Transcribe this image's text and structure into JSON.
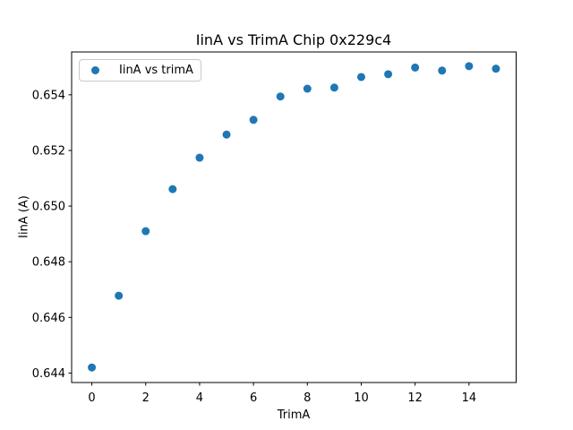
{
  "figure": {
    "background": "#ffffff",
    "text_color": "#000000",
    "spine_color": "#000000"
  },
  "chart_data": {
    "type": "scatter",
    "title": "IinA vs TrimA Chip 0x229c4",
    "xlabel": "TrimA",
    "ylabel": "IinA (A)",
    "legend": {
      "label": "IinA vs trimA",
      "position": "upper left"
    },
    "marker_color": "#1f77b4",
    "grid": false,
    "x": [
      0,
      1,
      2,
      3,
      4,
      5,
      6,
      7,
      8,
      9,
      10,
      11,
      12,
      13,
      14,
      15
    ],
    "y": [
      0.6442,
      0.64678,
      0.6491,
      0.65061,
      0.65174,
      0.65257,
      0.6531,
      0.65394,
      0.65422,
      0.65426,
      0.65464,
      0.65474,
      0.65498,
      0.65487,
      0.65503,
      0.65494
    ],
    "xlim": [
      -0.75,
      15.75
    ],
    "ylim": [
      0.64366,
      0.65554
    ],
    "xticks": [
      0,
      2,
      4,
      6,
      8,
      10,
      12,
      14
    ],
    "yticks": [
      0.644,
      0.646,
      0.648,
      0.65,
      0.652,
      0.654
    ],
    "ytick_decimals": 3
  }
}
